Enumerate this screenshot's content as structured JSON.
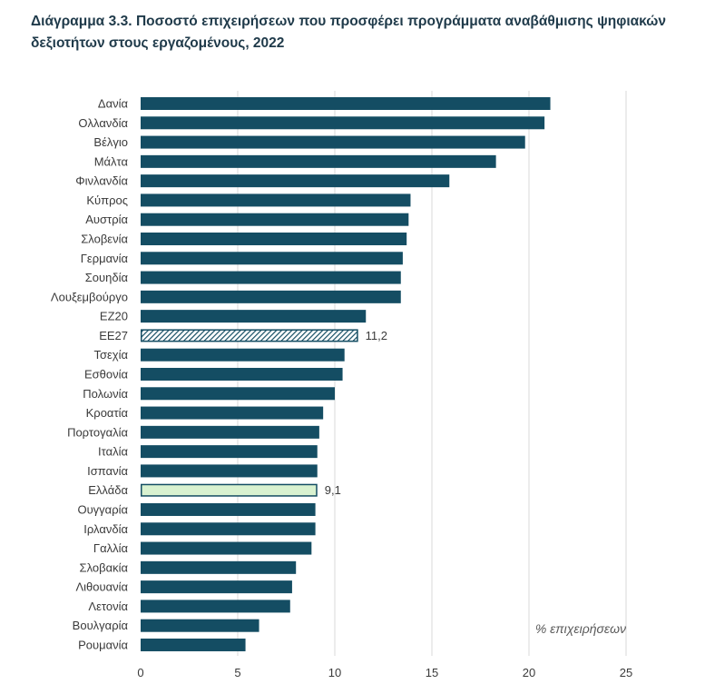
{
  "title": "Διάγραμμα 3.3. Ποσοστό επιχειρήσεων που προσφέρει προγράμματα αναβάθμισης ψηφιακών δεξιοτήτων στους εργαζομένους, 2022",
  "colors": {
    "bar": "#144d63",
    "highlight_fill": "#d9f2d0",
    "highlight_stroke": "#144d63",
    "grid": "#d9d9d9"
  },
  "chart_data": {
    "type": "bar",
    "orientation": "horizontal",
    "categories": [
      "Δανία",
      "Ολλανδία",
      "Βέλγιο",
      "Μάλτα",
      "Φινλανδία",
      "Κύπρος",
      "Αυστρία",
      "Σλοβενία",
      "Γερμανία",
      "Σουηδία",
      "Λουξεμβούργο",
      "ΕΖ20",
      "ΕΕ27",
      "Τσεχία",
      "Εσθονία",
      "Πολωνία",
      "Κροατία",
      "Πορτογαλία",
      "Ιταλία",
      "Ισπανία",
      "Ελλάδα",
      "Ουγγαρία",
      "Ιρλανδία",
      "Γαλλία",
      "Σλοβακία",
      "Λιθουανία",
      "Λετονία",
      "Βουλγαρία",
      "Ρουμανία"
    ],
    "values": [
      21.1,
      20.8,
      19.8,
      18.3,
      15.9,
      13.9,
      13.8,
      13.7,
      13.5,
      13.4,
      13.4,
      11.6,
      11.2,
      10.5,
      10.4,
      10.0,
      9.4,
      9.2,
      9.1,
      9.1,
      9.1,
      9.0,
      9.0,
      8.8,
      8.0,
      7.8,
      7.7,
      6.1,
      5.4
    ],
    "styles": [
      "solid",
      "solid",
      "solid",
      "solid",
      "solid",
      "solid",
      "solid",
      "solid",
      "solid",
      "solid",
      "solid",
      "solid",
      "hatched",
      "solid",
      "solid",
      "solid",
      "solid",
      "solid",
      "solid",
      "solid",
      "highlight",
      "solid",
      "solid",
      "solid",
      "solid",
      "solid",
      "solid",
      "solid",
      "solid"
    ],
    "data_labels": [
      {
        "category": "ΕΕ27",
        "text": "11,2"
      },
      {
        "category": "Ελλάδα",
        "text": "9,1"
      }
    ],
    "xlim": [
      0,
      25
    ],
    "xticks": [
      0,
      5,
      10,
      15,
      20,
      25
    ],
    "xlabel": "% επιχειρήσεων",
    "ylabel": "",
    "grid": "vertical"
  }
}
